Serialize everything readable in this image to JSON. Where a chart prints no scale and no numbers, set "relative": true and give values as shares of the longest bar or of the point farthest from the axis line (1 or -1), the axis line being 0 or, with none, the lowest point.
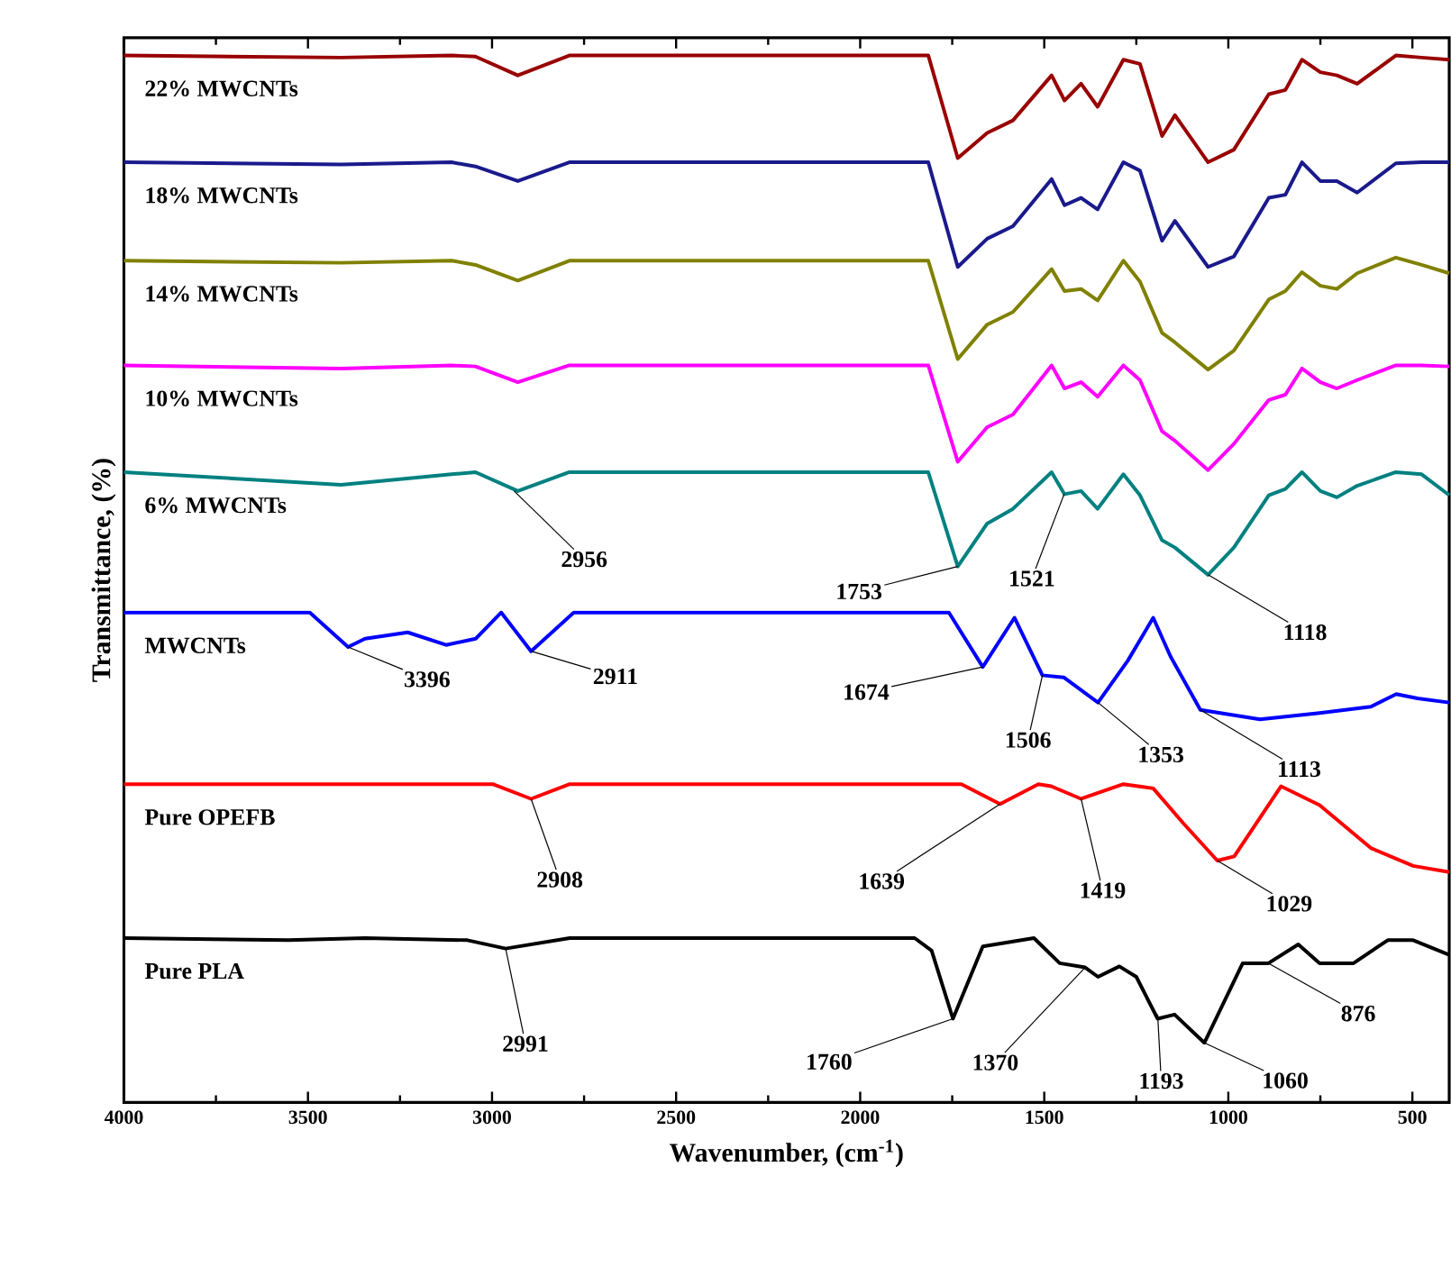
{
  "chart_data": {
    "type": "line",
    "relative": true,
    "xlabel": "Wavenumber, (cm$^{-1}$)",
    "ylabel": "Transmittance, (%)",
    "xlim": [
      4000,
      400
    ],
    "xticks": [
      4000,
      3500,
      3000,
      2500,
      2000,
      1500,
      1000,
      500
    ],
    "x": [
      4000,
      3410,
      3110,
      3045,
      2930,
      2790,
      1815,
      1735,
      1655,
      1585,
      1480,
      1445,
      1400,
      1355,
      1285,
      1240,
      1180,
      1145,
      1055,
      985,
      890,
      845,
      800,
      750,
      705,
      650,
      545,
      475,
      400
    ],
    "series": [
      {
        "name": "22% MWCNTs",
        "color": "#990000",
        "values": [
          1.0,
          0.998,
          1.0,
          0.999,
          0.981,
          1.0,
          1.0,
          0.902,
          0.926,
          0.938,
          0.981,
          0.957,
          0.973,
          0.951,
          0.996,
          0.992,
          0.923,
          0.943,
          0.898,
          0.91,
          0.963,
          0.967,
          0.996,
          0.984,
          0.981,
          0.973,
          1.0,
          0.998,
          0.996
        ]
      },
      {
        "name": "18% MWCNTs",
        "color": "#1a1a8c",
        "values": [
          0.898,
          0.896,
          0.898,
          0.894,
          0.88,
          0.898,
          0.898,
          0.798,
          0.825,
          0.837,
          0.882,
          0.857,
          0.864,
          0.853,
          0.898,
          0.89,
          0.823,
          0.842,
          0.798,
          0.808,
          0.864,
          0.867,
          0.898,
          0.88,
          0.88,
          0.869,
          0.897,
          0.898,
          0.898
        ]
      },
      {
        "name": "14% MWCNTs",
        "color": "#808000",
        "values": [
          0.804,
          0.802,
          0.804,
          0.8,
          0.785,
          0.804,
          0.804,
          0.71,
          0.743,
          0.755,
          0.796,
          0.775,
          0.777,
          0.766,
          0.804,
          0.784,
          0.735,
          0.726,
          0.7,
          0.718,
          0.767,
          0.775,
          0.793,
          0.78,
          0.777,
          0.792,
          0.807,
          0.8,
          0.792
        ]
      },
      {
        "name": "10% MWCNTs",
        "color": "#ff00ff",
        "values": [
          0.704,
          0.701,
          0.704,
          0.703,
          0.688,
          0.704,
          0.704,
          0.612,
          0.645,
          0.657,
          0.704,
          0.682,
          0.688,
          0.674,
          0.704,
          0.69,
          0.641,
          0.632,
          0.604,
          0.629,
          0.671,
          0.676,
          0.701,
          0.688,
          0.682,
          0.69,
          0.704,
          0.704,
          0.703
        ]
      },
      {
        "name": "6% MWCNTs",
        "color": "#008080",
        "values": [
          0.602,
          0.59,
          0.6,
          0.602,
          0.584,
          0.602,
          0.602,
          0.512,
          0.553,
          0.567,
          0.602,
          0.581,
          0.584,
          0.567,
          0.6,
          0.58,
          0.537,
          0.53,
          0.504,
          0.53,
          0.58,
          0.586,
          0.602,
          0.584,
          0.578,
          0.589,
          0.602,
          0.6,
          0.58
        ]
      },
      {
        "name": "MWCNTs",
        "color": "#0000ff",
        "x": [
          4000,
          3495,
          3391,
          3345,
          3229,
          3125,
          3044,
          2975,
          2894,
          2778,
          1759,
          1667,
          1581,
          1505,
          1447,
          1354,
          1273,
          1204,
          1157,
          1076,
          914,
          752,
          613,
          544,
          486,
          400
        ],
        "values": [
          0.468,
          0.468,
          0.435,
          0.443,
          0.449,
          0.437,
          0.443,
          0.468,
          0.431,
          0.468,
          0.468,
          0.416,
          0.463,
          0.408,
          0.406,
          0.382,
          0.422,
          0.463,
          0.426,
          0.375,
          0.366,
          0.372,
          0.378,
          0.39,
          0.386,
          0.382
        ]
      },
      {
        "name": "Pure OPEFB",
        "color": "#ff0000",
        "x": [
          4000,
          2998,
          2894,
          2789,
          1725,
          1620,
          1516,
          1481,
          1400,
          1285,
          1204,
          1123,
          1030,
          984,
          857,
          752,
          613,
          498,
          400
        ],
        "values": [
          0.304,
          0.304,
          0.29,
          0.304,
          0.304,
          0.285,
          0.304,
          0.302,
          0.29,
          0.304,
          0.3,
          0.267,
          0.231,
          0.235,
          0.302,
          0.284,
          0.243,
          0.226,
          0.22
        ]
      },
      {
        "name": "Pure PLA",
        "color": "#000000",
        "x": [
          4000,
          3553,
          3345,
          3067,
          2963,
          2789,
          1852,
          1806,
          1748,
          1667,
          1528,
          1458,
          1389,
          1354,
          1296,
          1250,
          1192,
          1146,
          1065,
          961,
          891,
          810,
          752,
          660,
          567,
          498,
          400
        ],
        "values": [
          0.157,
          0.155,
          0.157,
          0.155,
          0.147,
          0.157,
          0.157,
          0.145,
          0.08,
          0.149,
          0.157,
          0.133,
          0.129,
          0.12,
          0.13,
          0.12,
          0.08,
          0.084,
          0.057,
          0.133,
          0.133,
          0.151,
          0.133,
          0.133,
          0.155,
          0.155,
          0.141
        ]
      }
    ],
    "annotations": [
      {
        "text": "2956",
        "x": 2940,
        "y": 0.584
      },
      {
        "text": "1753",
        "x": 1735,
        "y": 0.512
      },
      {
        "text": "1521",
        "x": 1446,
        "y": 0.581
      },
      {
        "text": "1118",
        "x": 1055,
        "y": 0.504
      },
      {
        "text": "3396",
        "x": 3391,
        "y": 0.435
      },
      {
        "text": "2911",
        "x": 2894,
        "y": 0.431
      },
      {
        "text": "1674",
        "x": 1667,
        "y": 0.416
      },
      {
        "text": "1506",
        "x": 1505,
        "y": 0.408
      },
      {
        "text": "1353",
        "x": 1354,
        "y": 0.382
      },
      {
        "text": "1113",
        "x": 1076,
        "y": 0.375
      },
      {
        "text": "2908",
        "x": 2894,
        "y": 0.29
      },
      {
        "text": "1639",
        "x": 1620,
        "y": 0.285
      },
      {
        "text": "1419",
        "x": 1400,
        "y": 0.29
      },
      {
        "text": "1029",
        "x": 1030,
        "y": 0.231
      },
      {
        "text": "2991",
        "x": 2963,
        "y": 0.147
      },
      {
        "text": "1760",
        "x": 1748,
        "y": 0.08
      },
      {
        "text": "1370",
        "x": 1389,
        "y": 0.129
      },
      {
        "text": "1193",
        "x": 1192,
        "y": 0.084
      },
      {
        "text": "1060",
        "x": 1065,
        "y": 0.057
      },
      {
        "text": "876",
        "x": 891,
        "y": 0.133
      }
    ]
  }
}
